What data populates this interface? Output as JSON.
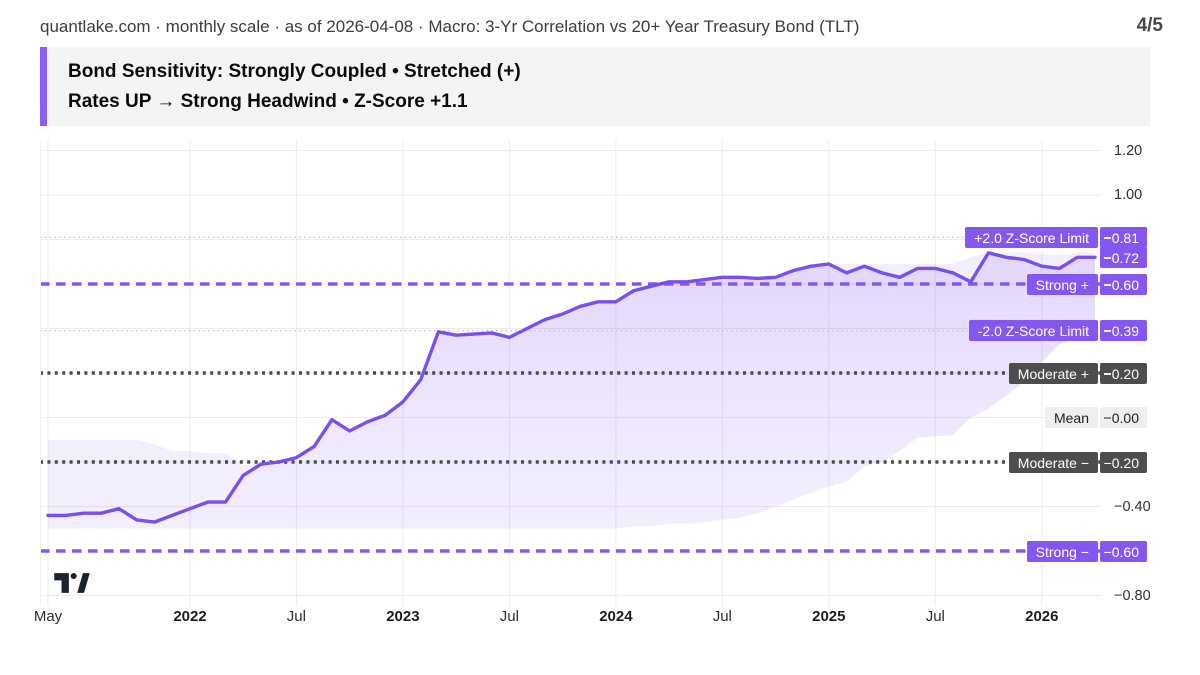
{
  "header": {
    "note": "quantlake.com · monthly scale · as of 2026-04-08 · Macro: 3-Yr Correlation vs 20+ Year Treasury Bond (TLT)",
    "page_indicator": "4/5"
  },
  "banner": {
    "line1": "Bond Sensitivity: Strongly Coupled • Stretched (+)",
    "line2": "Rates UP → Strong Headwind • Z-Score +1.1",
    "accent_color": "#8b5cf6",
    "bg_color": "#f4f4f4"
  },
  "icons": {
    "logo": "tradingview-logo"
  },
  "chart_data": {
    "type": "line",
    "x_unit": "month",
    "x_start": "May 2021",
    "ylim": [
      -0.85,
      1.25
    ],
    "grid": true,
    "colors": {
      "line": "#7b4fee",
      "accent_pill": "#8458f0",
      "band_fill": "rgba(133,90,241,0.10)",
      "under_fill": "rgba(133,90,241,0.16)",
      "dark_pill": "#4d4d4d",
      "light_pill": "#efefef",
      "gridline": "#ececec",
      "faint_dotted": "#ccbcf4",
      "dark_dotted": "#4a4a4a"
    },
    "x_labels": [
      {
        "text": "May",
        "k": 0,
        "bold": false
      },
      {
        "text": "2022",
        "k": 8,
        "bold": true
      },
      {
        "text": "Jul",
        "k": 14,
        "bold": false
      },
      {
        "text": "2023",
        "k": 20,
        "bold": true
      },
      {
        "text": "Jul",
        "k": 26,
        "bold": false
      },
      {
        "text": "2024",
        "k": 32,
        "bold": true
      },
      {
        "text": "Jul",
        "k": 38,
        "bold": false
      },
      {
        "text": "2025",
        "k": 44,
        "bold": true
      },
      {
        "text": "Jul",
        "k": 50,
        "bold": false
      },
      {
        "text": "2026",
        "k": 56,
        "bold": true
      }
    ],
    "gridlines": {
      "h_values": [
        1.2,
        1.0,
        0.8,
        0.6,
        0.4,
        0.2,
        0.0,
        -0.2,
        -0.4,
        -0.6,
        -0.8
      ],
      "v_month_indices": [
        0,
        8,
        14,
        20,
        26,
        32,
        38,
        44,
        50,
        56
      ]
    },
    "y_ticks_plain": [
      {
        "text": "1.20",
        "value": 1.2
      },
      {
        "text": "1.00",
        "value": 1.0
      },
      {
        "text": "−0.40",
        "value": -0.4
      },
      {
        "text": "−0.80",
        "value": -0.8
      }
    ],
    "reference_lines": [
      {
        "id": "plus-2z",
        "label": "+2.0 Z-Score Limit",
        "value": 0.81,
        "value_text": "0.81",
        "theme": "purple",
        "line_style": "dotted-faint"
      },
      {
        "id": "strong-plus",
        "label": "Strong +",
        "value": 0.6,
        "value_text": "0.60",
        "theme": "purple",
        "line_style": "dashed-purple"
      },
      {
        "id": "minus-2z",
        "label": "-2.0 Z-Score Limit",
        "value": 0.39,
        "value_text": "0.39",
        "theme": "purple",
        "line_style": "dotted-faint"
      },
      {
        "id": "moderate-plus",
        "label": "Moderate +",
        "value": 0.2,
        "value_text": "0.20",
        "theme": "dark",
        "line_style": "dotted-dark"
      },
      {
        "id": "mean",
        "label": "Mean",
        "value": 0.0,
        "value_text": "0.00",
        "theme": "light",
        "line_style": "none"
      },
      {
        "id": "moderate-minus",
        "label": "Moderate −",
        "value": -0.2,
        "value_text": "−0.20",
        "theme": "dark",
        "line_style": "dotted-dark"
      },
      {
        "id": "strong-minus",
        "label": "Strong −",
        "value": -0.6,
        "value_text": "−0.60",
        "theme": "purple",
        "line_style": "dashed-purple"
      }
    ],
    "last_value": {
      "value": 0.72,
      "value_text": "0.72",
      "theme": "purple"
    },
    "series": [
      {
        "name": "3yr-correlation-vs-tlt",
        "values": [
          -0.44,
          -0.44,
          -0.43,
          -0.43,
          -0.41,
          -0.46,
          -0.47,
          -0.44,
          -0.41,
          -0.38,
          -0.38,
          -0.26,
          -0.21,
          -0.2,
          -0.18,
          -0.13,
          -0.01,
          -0.06,
          -0.02,
          0.01,
          0.07,
          0.17,
          0.385,
          0.37,
          0.375,
          0.38,
          0.36,
          0.4,
          0.44,
          0.465,
          0.5,
          0.52,
          0.52,
          0.57,
          0.59,
          0.61,
          0.61,
          0.62,
          0.63,
          0.63,
          0.625,
          0.63,
          0.66,
          0.68,
          0.69,
          0.65,
          0.68,
          0.65,
          0.63,
          0.67,
          0.67,
          0.65,
          0.61,
          0.74,
          0.72,
          0.71,
          0.68,
          0.67,
          0.72,
          0.72
        ]
      }
    ],
    "band": {
      "name": "rolling-z-score-band",
      "top": [
        -0.1,
        -0.1,
        -0.1,
        -0.1,
        -0.1,
        -0.1,
        -0.12,
        -0.15,
        -0.15,
        -0.16,
        -0.16,
        -0.22,
        -0.2,
        -0.19,
        -0.18,
        -0.13,
        -0.01,
        -0.06,
        -0.02,
        0.01,
        0.07,
        0.17,
        0.385,
        0.37,
        0.375,
        0.38,
        0.36,
        0.4,
        0.44,
        0.465,
        0.5,
        0.52,
        0.52,
        0.57,
        0.59,
        0.61,
        0.61,
        0.62,
        0.63,
        0.63,
        0.625,
        0.63,
        0.66,
        0.68,
        0.69,
        0.69,
        0.69,
        0.69,
        0.69,
        0.69,
        0.69,
        0.69,
        0.72,
        0.74,
        0.74,
        0.74,
        0.735,
        0.73,
        0.74,
        0.74
      ],
      "bottom": [
        -0.5,
        -0.5,
        -0.5,
        -0.5,
        -0.5,
        -0.5,
        -0.5,
        -0.5,
        -0.5,
        -0.5,
        -0.5,
        -0.5,
        -0.5,
        -0.5,
        -0.5,
        -0.5,
        -0.5,
        -0.5,
        -0.5,
        -0.5,
        -0.5,
        -0.5,
        -0.5,
        -0.5,
        -0.5,
        -0.5,
        -0.5,
        -0.5,
        -0.5,
        -0.5,
        -0.5,
        -0.5,
        -0.5,
        -0.49,
        -0.49,
        -0.48,
        -0.48,
        -0.47,
        -0.46,
        -0.45,
        -0.43,
        -0.4,
        -0.37,
        -0.34,
        -0.31,
        -0.29,
        -0.22,
        -0.2,
        -0.15,
        -0.09,
        -0.085,
        -0.08,
        0.0,
        0.04,
        0.1,
        0.16,
        0.25,
        0.33,
        0.36,
        0.37
      ]
    }
  }
}
